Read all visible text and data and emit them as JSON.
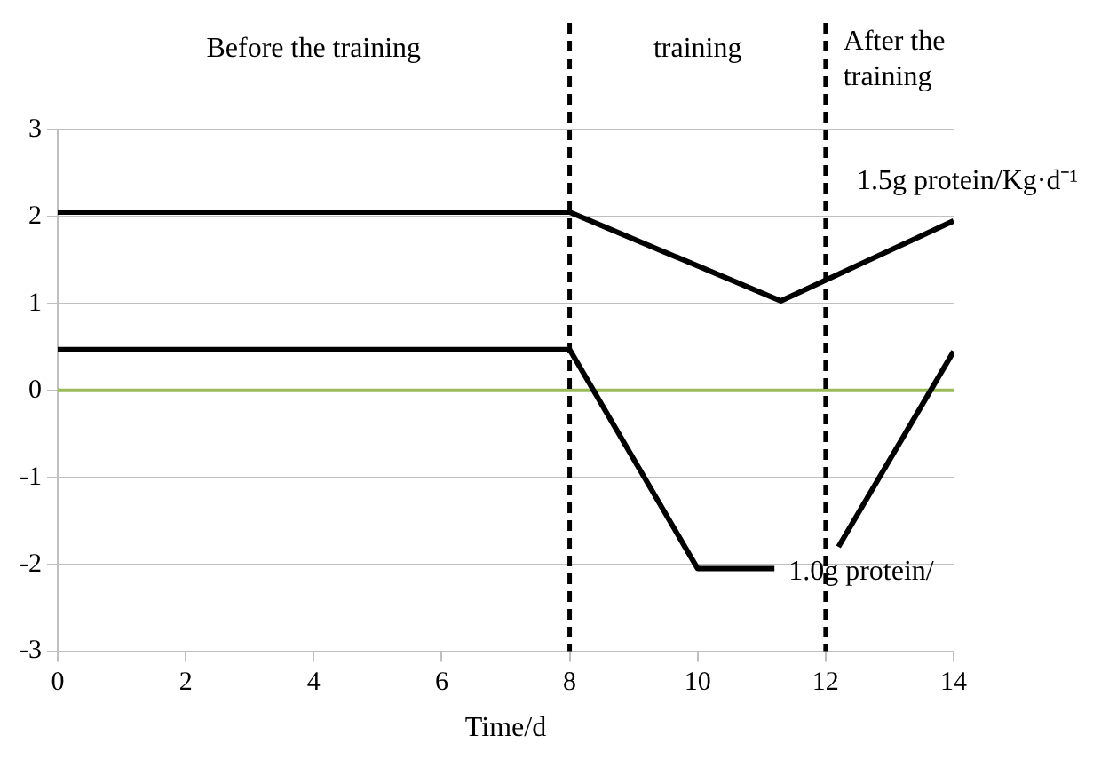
{
  "chart_data": {
    "type": "line",
    "xlabel": "Time/d",
    "xlim": [
      0,
      14
    ],
    "xticks": [
      0,
      2,
      4,
      6,
      8,
      10,
      12,
      14
    ],
    "ylim": [
      -3,
      3
    ],
    "yticks": [
      -3,
      -2,
      -1,
      0,
      1,
      2,
      3
    ],
    "grid": "y",
    "legend": false,
    "marker": "none",
    "line_style": "solid",
    "series": [
      {
        "name": "1.5g protein/Kg·d⁻¹",
        "color": "#000000",
        "x": [
          0,
          8,
          11.3,
          14
        ],
        "values": [
          2.05,
          2.05,
          1.03,
          1.95
        ]
      },
      {
        "name": "1.0g protein/",
        "color": "#000000",
        "x": [
          0,
          8,
          10,
          11.2,
          11.7,
          12.2,
          14
        ],
        "values": [
          0.47,
          0.47,
          -2.05,
          -2.05,
          null,
          -1.8,
          0.45
        ]
      }
    ],
    "ref_lines": [
      {
        "axis": "y",
        "value": 0,
        "color": "#9bbb59",
        "line_style": "solid"
      },
      {
        "axis": "x",
        "value": 8,
        "color": "#000000",
        "line_style": "dashed"
      },
      {
        "axis": "x",
        "value": 12,
        "color": "#000000",
        "line_style": "dashed"
      }
    ],
    "annotations": [
      "Before the training",
      "training",
      "After the\ntraining"
    ]
  }
}
